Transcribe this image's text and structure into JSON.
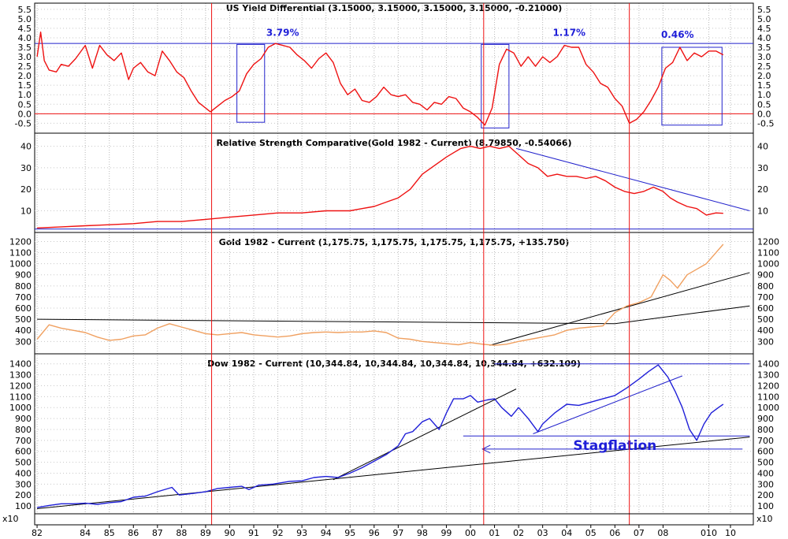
{
  "chart_data": [
    {
      "id": "yield",
      "type": "line",
      "title": "US Yield Differential (3.15000, 3.15000, 3.15000, 3.15000, -0.21000)",
      "ylim": [
        -0.9,
        5.7
      ],
      "yticks": [
        "5.5",
        "5.0",
        "4.5",
        "4.0",
        "3.5",
        "3.0",
        "2.5",
        "2.0",
        "1.5",
        "1.0",
        "0.5",
        "0.0",
        "-0.5"
      ],
      "line_color": "#ee1111",
      "series": [
        {
          "x": [
            1982.0,
            1982.15,
            1982.3,
            1982.5,
            1982.8,
            1983.0,
            1983.3,
            1983.6,
            1984.0,
            1984.3,
            1984.6,
            1984.9,
            1985.2,
            1985.5,
            1985.8,
            1986.0,
            1986.3,
            1986.6,
            1986.9,
            1987.2,
            1987.5,
            1987.8,
            1988.1,
            1988.4,
            1988.7,
            1989.0,
            1989.2,
            1989.5,
            1989.8,
            1990.1,
            1990.4,
            1990.7,
            1991.0,
            1991.3,
            1991.6,
            1991.9,
            1992.2,
            1992.5,
            1992.8,
            1993.1,
            1993.4,
            1993.7,
            1994.0,
            1994.3,
            1994.6,
            1994.9,
            1995.2,
            1995.5,
            1995.8,
            1996.1,
            1996.4,
            1996.7,
            1997.0,
            1997.3,
            1997.6,
            1997.9,
            1998.2,
            1998.5,
            1998.8,
            1999.1,
            1999.4,
            1999.7,
            2000.0,
            2000.3,
            2000.6,
            2000.9,
            2001.2,
            2001.5,
            2001.8,
            2002.1,
            2002.4,
            2002.7,
            2003.0,
            2003.3,
            2003.6,
            2003.9,
            2004.2,
            2004.5,
            2004.8,
            2005.1,
            2005.4,
            2005.7,
            2006.0,
            2006.3,
            2006.6,
            2006.9,
            2007.2,
            2007.5,
            2007.8,
            2008.1,
            2008.4,
            2008.7,
            2009.0,
            2009.3,
            2009.6,
            2009.9,
            2010.2,
            2010.5
          ],
          "y": [
            3.0,
            4.3,
            2.8,
            2.3,
            2.2,
            2.6,
            2.5,
            2.9,
            3.6,
            2.4,
            3.6,
            3.1,
            2.8,
            3.2,
            1.8,
            2.4,
            2.7,
            2.2,
            2.0,
            3.3,
            2.8,
            2.2,
            1.9,
            1.2,
            0.6,
            0.3,
            0.1,
            0.4,
            0.7,
            0.9,
            1.2,
            2.1,
            2.6,
            2.9,
            3.5,
            3.7,
            3.6,
            3.5,
            3.1,
            2.8,
            2.4,
            2.9,
            3.2,
            2.7,
            1.6,
            1.0,
            1.3,
            0.7,
            0.6,
            0.9,
            1.4,
            1.0,
            0.9,
            1.0,
            0.6,
            0.5,
            0.2,
            0.6,
            0.5,
            0.9,
            0.8,
            0.3,
            0.1,
            -0.2,
            -0.6,
            0.3,
            2.6,
            3.4,
            3.2,
            2.5,
            3.0,
            2.5,
            3.0,
            2.7,
            3.0,
            3.6,
            3.5,
            3.5,
            2.6,
            2.2,
            1.6,
            1.4,
            0.8,
            0.4,
            -0.5,
            -0.3,
            0.1,
            0.7,
            1.4,
            2.4,
            2.7,
            3.5,
            2.8,
            3.2,
            3.0,
            3.3,
            3.3,
            3.1
          ]
        }
      ],
      "hlines": [
        3.7,
        0.0
      ],
      "hline_colors": [
        "#2222cc",
        "#ee1111"
      ],
      "boxes": [
        {
          "x0": 1990.3,
          "x1": 1991.45,
          "y0": -0.45,
          "y1": 3.65
        },
        {
          "x0": 2000.45,
          "x1": 2001.6,
          "y0": -0.75,
          "y1": 3.65
        },
        {
          "x0": 2007.95,
          "x1": 2010.45,
          "y0": -0.6,
          "y1": 3.5
        }
      ],
      "annotations": [
        {
          "text": "3.79%",
          "x": 1992.2,
          "y": 4.1
        },
        {
          "text": "1.17%",
          "x": 2004.1,
          "y": 4.1
        },
        {
          "text": "0.46%",
          "x": 2008.6,
          "y": 4.0
        }
      ]
    },
    {
      "id": "rsc",
      "type": "line",
      "title": "Relative Strength Comparative(Gold 1982 - Current) (8.79850, -0.54066)",
      "ylim": [
        1,
        45
      ],
      "yticks": [
        "40",
        "30",
        "20",
        "10"
      ],
      "line_color": "#ee1111",
      "series": [
        {
          "x": [
            1982.0,
            1983.0,
            1984.0,
            1985.0,
            1986.0,
            1987.0,
            1988.0,
            1989.0,
            1990.0,
            1991.0,
            1992.0,
            1993.0,
            1994.0,
            1995.0,
            1995.5,
            1996.0,
            1996.5,
            1997.0,
            1997.5,
            1998.0,
            1998.5,
            1999.0,
            1999.3,
            1999.6,
            2000.0,
            2000.4,
            2000.8,
            2001.2,
            2001.6,
            2002.0,
            2002.4,
            2002.8,
            2003.2,
            2003.6,
            2004.0,
            2004.4,
            2004.8,
            2005.2,
            2005.6,
            2006.0,
            2006.4,
            2006.8,
            2007.2,
            2007.6,
            2008.0,
            2008.3,
            2008.6,
            2009.0,
            2009.4,
            2009.8,
            2010.2,
            2010.5
          ],
          "y": [
            2,
            2.5,
            3,
            3.5,
            4,
            5,
            5,
            6,
            7,
            8,
            9,
            9,
            10,
            10,
            11,
            12,
            14,
            16,
            20,
            27,
            31,
            35,
            37,
            39,
            40,
            39,
            40,
            39,
            40,
            36,
            32,
            30,
            26,
            27,
            26,
            26,
            25,
            26,
            24,
            21,
            19,
            18,
            19,
            21,
            19,
            16,
            14,
            12,
            11,
            8,
            9,
            8.8
          ]
        }
      ],
      "hlines": [
        1.5
      ],
      "hline_colors": [
        "#2222cc"
      ],
      "trendlines": [
        {
          "x": [
            2001.9,
            2011.6
          ],
          "y": [
            39,
            10
          ],
          "color": "#2222cc"
        }
      ]
    },
    {
      "id": "gold",
      "type": "line",
      "title": "Gold 1982 - Current (1,175.75, 1,175.75, 1,175.75, 1,175.75, +135.750)",
      "ylim": [
        210,
        1260
      ],
      "yticks": [
        "1200",
        "1100",
        "1000",
        "900",
        "800",
        "700",
        "600",
        "500",
        "400",
        "300"
      ],
      "line_color": "#f0a060",
      "series": [
        {
          "x": [
            1982.0,
            1982.5,
            1983.0,
            1983.5,
            1984.0,
            1984.5,
            1985.0,
            1985.5,
            1986.0,
            1986.5,
            1987.0,
            1987.5,
            1988.0,
            1988.5,
            1989.0,
            1989.5,
            1990.0,
            1990.5,
            1991.0,
            1991.5,
            1992.0,
            1992.5,
            1993.0,
            1993.5,
            1994.0,
            1994.5,
            1995.0,
            1995.5,
            1996.0,
            1996.5,
            1997.0,
            1997.5,
            1998.0,
            1998.5,
            1999.0,
            1999.5,
            2000.0,
            2000.5,
            2001.0,
            2001.5,
            2002.0,
            2002.5,
            2003.0,
            2003.5,
            2004.0,
            2004.5,
            2005.0,
            2005.5,
            2006.0,
            2006.5,
            2007.0,
            2007.5,
            2008.0,
            2008.3,
            2008.6,
            2009.0,
            2009.4,
            2009.8,
            2010.2,
            2010.5
          ],
          "y": [
            320,
            450,
            420,
            400,
            380,
            340,
            310,
            320,
            350,
            360,
            420,
            460,
            430,
            400,
            370,
            360,
            370,
            380,
            360,
            350,
            340,
            350,
            370,
            380,
            385,
            380,
            385,
            385,
            395,
            380,
            330,
            320,
            300,
            290,
            280,
            270,
            290,
            275,
            265,
            275,
            300,
            320,
            340,
            360,
            400,
            420,
            430,
            440,
            560,
            620,
            650,
            700,
            900,
            850,
            780,
            900,
            950,
            1000,
            1100,
            1175
          ]
        }
      ],
      "trendlines": [
        {
          "x": [
            1982.0,
            2006.0
          ],
          "y": [
            500,
            460
          ],
          "color": "#000000"
        },
        {
          "x": [
            2006.0,
            2011.6
          ],
          "y": [
            460,
            620
          ],
          "color": "#000000"
        },
        {
          "x": [
            2000.8,
            2011.6
          ],
          "y": [
            265,
            920
          ],
          "color": "#000000"
        }
      ]
    },
    {
      "id": "dow",
      "type": "line",
      "title": "Dow 1982 - Current (10,344.84, 10,344.84, 10,344.84, 10,344.84, +632.109)",
      "ylim": [
        50,
        1470
      ],
      "yticks": [
        "1400",
        "1300",
        "1200",
        "1100",
        "1000",
        "900",
        "800",
        "700",
        "600",
        "500",
        "400",
        "300",
        "200",
        "100"
      ],
      "axis_multiplier": "x10",
      "line_color": "#1f1fd8",
      "series": [
        {
          "x": [
            1982.0,
            1982.5,
            1983.0,
            1983.5,
            1984.0,
            1984.5,
            1985.0,
            1985.5,
            1986.0,
            1986.5,
            1987.0,
            1987.6,
            1987.9,
            1988.5,
            1989.0,
            1989.5,
            1990.0,
            1990.5,
            1990.8,
            1991.2,
            1991.8,
            1992.5,
            1993.0,
            1993.5,
            1994.0,
            1994.5,
            1995.0,
            1995.5,
            1996.0,
            1996.5,
            1997.0,
            1997.3,
            1997.6,
            1998.0,
            1998.3,
            1998.7,
            1999.0,
            1999.3,
            1999.7,
            2000.0,
            2000.3,
            2000.7,
            2001.0,
            2001.3,
            2001.7,
            2002.0,
            2002.4,
            2002.8,
            2003.0,
            2003.5,
            2004.0,
            2004.5,
            2005.0,
            2005.5,
            2006.0,
            2006.5,
            2007.0,
            2007.4,
            2007.8,
            2008.2,
            2008.5,
            2008.8,
            2009.1,
            2009.4,
            2009.7,
            2010.0,
            2010.3,
            2010.5
          ],
          "y": [
            85,
            105,
            120,
            120,
            125,
            115,
            130,
            140,
            180,
            190,
            230,
            270,
            200,
            215,
            230,
            260,
            270,
            280,
            250,
            290,
            300,
            325,
            330,
            360,
            370,
            360,
            400,
            450,
            510,
            570,
            650,
            760,
            780,
            870,
            900,
            800,
            950,
            1080,
            1080,
            1110,
            1050,
            1070,
            1080,
            1000,
            920,
            1000,
            900,
            780,
            850,
            950,
            1030,
            1020,
            1050,
            1080,
            1110,
            1180,
            1260,
            1330,
            1390,
            1280,
            1150,
            1000,
            800,
            700,
            850,
            950,
            1000,
            1030
          ]
        }
      ],
      "hlines": [
        1400,
        740
      ],
      "hline_colors": [
        "#2222cc",
        "#2222cc"
      ],
      "hline_ranges": [
        [
          2001.0,
          2011.6
        ],
        [
          1999.7,
          2011.6
        ]
      ],
      "trendlines": [
        {
          "x": [
            1982.0,
            2011.6
          ],
          "y": [
            75,
            730
          ],
          "color": "#000000"
        },
        {
          "x": [
            1994.3,
            2001.9
          ],
          "y": [
            340,
            1170
          ],
          "color": "#000000"
        },
        {
          "x": [
            2002.6,
            2008.8
          ],
          "y": [
            760,
            1290
          ],
          "color": "#2222cc"
        }
      ],
      "arrow": {
        "x0": 2011.3,
        "x1": 2000.5,
        "y": 620,
        "color": "#2222cc"
      },
      "annotations": [
        {
          "text": "Stagflation",
          "x": 2006.0,
          "y": 612
        }
      ]
    }
  ],
  "x_axis": {
    "xlim": [
      1981.9,
      2011.75
    ],
    "tick_labels": [
      "82",
      "84",
      "85",
      "86",
      "87",
      "88",
      "89",
      "90",
      "91",
      "92",
      "93",
      "94",
      "95",
      "96",
      "97",
      "98",
      "99",
      "00",
      "01",
      "02",
      "03",
      "04",
      "05",
      "06",
      "07",
      "08",
      "010",
      "10"
    ],
    "tick_years": [
      1982,
      1984,
      1985,
      1986,
      1987,
      1988,
      1989,
      1990,
      1991,
      1992,
      1993,
      1994,
      1995,
      1996,
      1997,
      1998,
      1999,
      2000,
      2001,
      2002,
      2003,
      2004,
      2005,
      2006,
      2007,
      2008,
      2009.9,
      2010.8
    ],
    "vertical_markers": [
      1989.25,
      2000.55,
      2006.6
    ],
    "marker_color": "#ee1111"
  }
}
